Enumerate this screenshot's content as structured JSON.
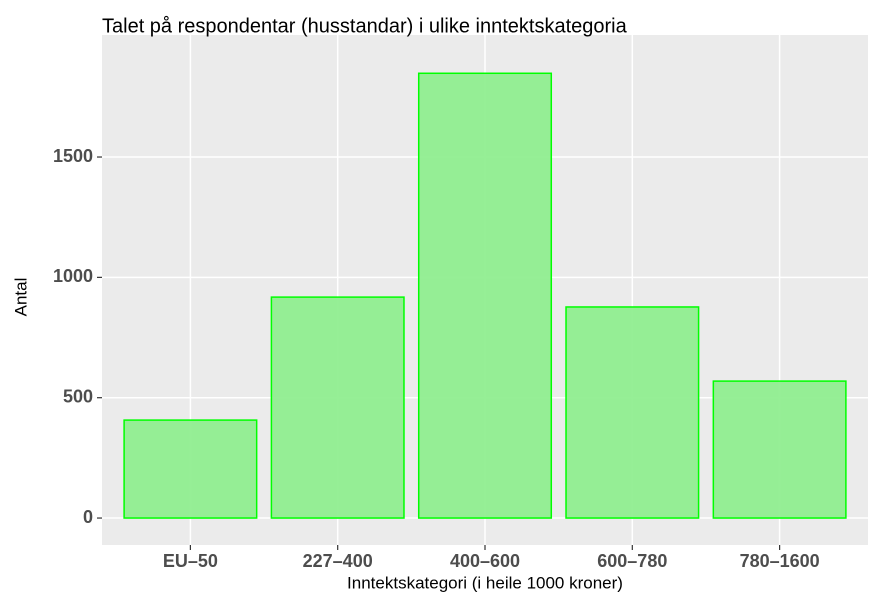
{
  "chart_data": {
    "type": "bar",
    "title": "Talet på respondentar (husstandar) i ulike inntektskategoria",
    "x_label": "Inntektskategori (i heile 1000 kroner)",
    "y_label": "Antal",
    "categories": [
      "EU–50",
      "227–400",
      "400–600",
      "600–780",
      "780–1600"
    ],
    "values": [
      407,
      918,
      1848,
      877,
      569
    ],
    "color": "#90ee90",
    "edge_color": "#00ff00",
    "ylim": [
      -112,
      2007
    ],
    "yticks": [
      0,
      500,
      1000,
      1500
    ],
    "grid": true
  }
}
